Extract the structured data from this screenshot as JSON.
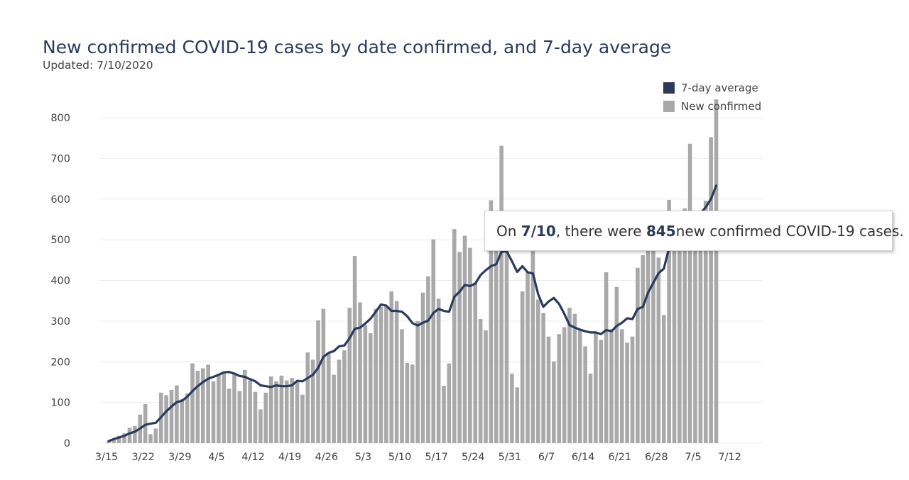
{
  "header": {
    "title": "New confirmed COVID-19 cases by date confirmed, and 7-day average",
    "subtitle": "Updated: 7/10/2020"
  },
  "legend": {
    "items": [
      {
        "label": "7-day average",
        "color": "#2b3a5c"
      },
      {
        "label": "New confirmed",
        "color": "#a9a9a9"
      }
    ]
  },
  "tooltip": {
    "prefix": "On ",
    "date": "7/10",
    "middle": ", there were ",
    "value": "845",
    "suffix": " new confirmed COVID-19 cases."
  },
  "colors": {
    "bar": "#a9a9a9",
    "line": "#2b3a5c",
    "grid": "#ececec",
    "highlight_outline": "#111111"
  },
  "chart_data": {
    "type": "bar",
    "title": "New confirmed COVID-19 cases by date confirmed, and 7-day average",
    "subtitle": "Updated: 7/10/2020",
    "xlabel": "",
    "ylabel": "",
    "ylim": [
      0,
      800
    ],
    "y_ticks": [
      0,
      100,
      200,
      300,
      400,
      500,
      600,
      700,
      800
    ],
    "x_tick_labels": [
      "3/15",
      "3/22",
      "3/29",
      "4/5",
      "4/12",
      "4/19",
      "4/26",
      "5/3",
      "5/10",
      "5/17",
      "5/24",
      "5/31",
      "6/7",
      "6/14",
      "6/21",
      "6/28",
      "7/5",
      "7/12"
    ],
    "x_start": "3/15",
    "x_end": "7/10",
    "grid": "horizontal",
    "legend_position": "top-right",
    "highlighted_date": "7/10",
    "avg_label_date": "7/10",
    "avg_label": "633",
    "series": [
      {
        "name": "New confirmed",
        "type": "bar",
        "values": [
          5,
          10,
          18,
          24,
          38,
          42,
          70,
          96,
          22,
          36,
          124,
          118,
          131,
          142,
          108,
          122,
          196,
          178,
          184,
          193,
          152,
          168,
          176,
          134,
          172,
          128,
          180,
          154,
          126,
          83,
          124,
          164,
          152,
          166,
          154,
          160,
          150,
          119,
          223,
          205,
          302,
          330,
          220,
          168,
          205,
          228,
          333,
          460,
          346,
          290,
          270,
          330,
          335,
          338,
          373,
          349,
          280,
          197,
          193,
          300,
          370,
          410,
          501,
          355,
          141,
          196,
          526,
          470,
          510,
          480,
          395,
          305,
          277,
          597,
          480,
          731,
          470,
          171,
          137,
          373,
          420,
          472,
          353,
          320,
          262,
          201,
          268,
          285,
          333,
          318,
          278,
          238,
          171,
          270,
          254,
          420,
          280,
          384,
          280,
          247,
          262,
          431,
          462,
          484,
          475,
          456,
          315,
          598,
          540,
          560,
          577,
          736,
          570,
          540,
          596,
          752,
          845
        ]
      },
      {
        "name": "7-day average",
        "type": "line",
        "values": [
          5,
          10,
          14,
          18,
          24,
          28,
          36,
          45,
          48,
          50,
          64,
          78,
          90,
          101,
          104,
          114,
          128,
          140,
          150,
          158,
          163,
          168,
          174,
          175,
          171,
          165,
          163,
          157,
          152,
          142,
          140,
          138,
          142,
          140,
          140,
          142,
          153,
          152,
          160,
          168,
          185,
          212,
          222,
          226,
          238,
          240,
          258,
          281,
          284,
          294,
          306,
          323,
          341,
          338,
          325,
          325,
          323,
          312,
          295,
          289,
          296,
          301,
          320,
          330,
          325,
          323,
          360,
          372,
          389,
          386,
          392,
          413,
          425,
          435,
          440,
          470,
          472,
          447,
          421,
          435,
          420,
          417,
          366,
          335,
          348,
          357,
          342,
          318,
          290,
          284,
          279,
          275,
          272,
          272,
          268,
          278,
          275,
          288,
          296,
          307,
          305,
          330,
          335,
          370,
          394,
          418,
          429,
          480,
          483,
          500,
          515,
          535,
          550,
          565,
          580,
          600,
          633
        ]
      }
    ]
  }
}
